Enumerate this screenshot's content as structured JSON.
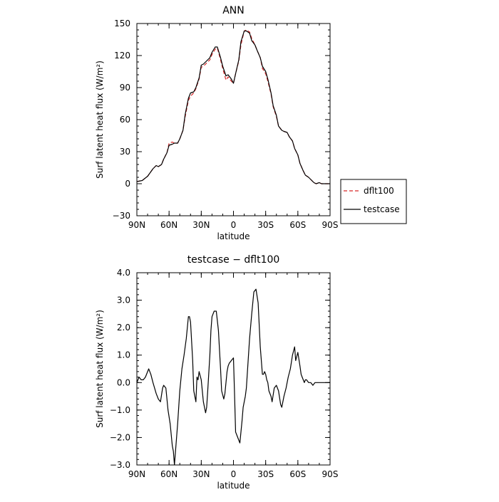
{
  "chart_data": [
    {
      "type": "line",
      "title": "ANN",
      "xlabel": "latitude",
      "ylabel": "Surf latent heat flux (W/m²)",
      "ylim": [
        -30,
        150
      ],
      "xlim": [
        90,
        -90
      ],
      "x_ticks": [
        {
          "value": 90,
          "label": "90N"
        },
        {
          "value": 60,
          "label": "60N"
        },
        {
          "value": 30,
          "label": "30N"
        },
        {
          "value": 0,
          "label": "0"
        },
        {
          "value": -30,
          "label": "30S"
        },
        {
          "value": -60,
          "label": "60S"
        },
        {
          "value": -90,
          "label": "90S"
        }
      ],
      "y_ticks": [
        {
          "value": 150,
          "label": "150"
        },
        {
          "value": 120,
          "label": "120"
        },
        {
          "value": 90,
          "label": "90"
        },
        {
          "value": 60,
          "label": "60"
        },
        {
          "value": 30,
          "label": "30"
        },
        {
          "value": 0,
          "label": "0"
        },
        {
          "value": -30,
          "label": "−30"
        }
      ],
      "legend": "right",
      "x": [
        90,
        85,
        80,
        75,
        72,
        70,
        67,
        65,
        62,
        60,
        57,
        55,
        52,
        50,
        47,
        45,
        42,
        40,
        37,
        35,
        32,
        30,
        28,
        25,
        22,
        20,
        17,
        15,
        12,
        10,
        7,
        5,
        2,
        0,
        -2,
        -5,
        -7,
        -10,
        -12,
        -15,
        -17,
        -20,
        -22,
        -25,
        -27,
        -30,
        -32,
        -35,
        -37,
        -40,
        -42,
        -45,
        -47,
        -50,
        -52,
        -55,
        -57,
        -60,
        -62,
        -65,
        -67,
        -70,
        -72,
        -75,
        -77,
        -80,
        -82,
        -85,
        -87,
        -90
      ],
      "series": [
        {
          "name": "dflt100",
          "color": "#d62728",
          "dash": "dashed",
          "values": [
            2,
            3,
            7,
            14,
            17,
            16,
            18,
            23,
            29,
            38,
            39,
            38,
            38,
            42,
            50,
            63,
            78,
            82,
            85,
            89,
            98,
            109,
            110,
            113,
            116,
            121,
            126,
            127,
            116,
            108,
            97,
            100,
            96,
            94,
            103,
            115,
            130,
            143,
            144,
            142,
            136,
            130,
            125,
            118,
            108,
            103,
            96,
            84,
            72,
            63,
            54,
            50,
            49,
            48,
            44,
            40,
            33,
            27,
            19,
            12,
            8,
            6,
            4,
            1,
            0,
            1,
            0,
            0,
            0,
            0
          ]
        },
        {
          "name": "testcase",
          "color": "#000000",
          "dash": "solid",
          "values": [
            2,
            3,
            7,
            14,
            17,
            16,
            18,
            23,
            29,
            36,
            37,
            38,
            38,
            42,
            50,
            65,
            80,
            85,
            86,
            90,
            99,
            111,
            112,
            115,
            118,
            123,
            128,
            128,
            118,
            110,
            101,
            102,
            98,
            94,
            103,
            116,
            133,
            143,
            143,
            141,
            134,
            130,
            125,
            118,
            110,
            105,
            98,
            85,
            73,
            64,
            54,
            50,
            49,
            48,
            44,
            40,
            33,
            27,
            19,
            12,
            8,
            6,
            4,
            1,
            0,
            1,
            0,
            0,
            0,
            0
          ]
        }
      ]
    },
    {
      "type": "line",
      "title": "testcase − dflt100",
      "xlabel": "latitude",
      "ylabel": "Surf latent heat flux (W/m²)",
      "ylim": [
        -3.0,
        4.0
      ],
      "xlim": [
        90,
        -90
      ],
      "x_ticks": [
        {
          "value": 90,
          "label": "90N"
        },
        {
          "value": 60,
          "label": "60N"
        },
        {
          "value": 30,
          "label": "30N"
        },
        {
          "value": 0,
          "label": "0"
        },
        {
          "value": -30,
          "label": "30S"
        },
        {
          "value": -60,
          "label": "60S"
        },
        {
          "value": -90,
          "label": "90S"
        }
      ],
      "y_ticks": [
        {
          "value": 4.0,
          "label": "4.0"
        },
        {
          "value": 3.0,
          "label": "3.0"
        },
        {
          "value": 2.0,
          "label": "2.0"
        },
        {
          "value": 1.0,
          "label": "1.0"
        },
        {
          "value": 0.0,
          "label": "0.0"
        },
        {
          "value": -1.0,
          "label": "−1.0"
        },
        {
          "value": -2.0,
          "label": "−2.0"
        },
        {
          "value": -3.0,
          "label": "−3.0"
        }
      ],
      "x": [
        90,
        88,
        86,
        84,
        82,
        79,
        77,
        75,
        72,
        70,
        68,
        66,
        65,
        63,
        61,
        59,
        57,
        56,
        55,
        52,
        50,
        48,
        46,
        44,
        43,
        42,
        41,
        40,
        38,
        37,
        35,
        34,
        33,
        32,
        30,
        28,
        26,
        25,
        24,
        22,
        21,
        20,
        18,
        16,
        14,
        12,
        11,
        9,
        8,
        6,
        5,
        4,
        2,
        0,
        -1,
        -2,
        -4,
        -6,
        -8,
        -9,
        -11,
        -12,
        -13,
        -14,
        -15,
        -17,
        -19,
        -21,
        -23,
        -25,
        -27,
        -28,
        -29,
        -30,
        -31,
        -32,
        -33,
        -35,
        -36,
        -38,
        -40,
        -42,
        -44,
        -45,
        -47,
        -49,
        -50,
        -51,
        -53,
        -55,
        -57,
        -58,
        -60,
        -62,
        -63,
        -64,
        -65,
        -66,
        -67,
        -68,
        -70,
        -72,
        -74,
        -76,
        -78,
        -80,
        -82,
        -84,
        -86,
        -88,
        -90
      ],
      "series": [
        {
          "name": "",
          "color": "#000000",
          "dash": "solid",
          "values": [
            0.0,
            0.2,
            0.1,
            0.1,
            0.2,
            0.5,
            0.3,
            0.0,
            -0.4,
            -0.6,
            -0.7,
            -0.2,
            -0.1,
            -0.2,
            -1.0,
            -1.5,
            -2.3,
            -2.5,
            -3.0,
            -1.5,
            -0.3,
            0.5,
            1.0,
            1.6,
            2.0,
            2.4,
            2.4,
            2.2,
            0.8,
            -0.3,
            -0.7,
            0.2,
            0.1,
            0.4,
            0.1,
            -0.7,
            -1.1,
            -0.9,
            -0.3,
            1.0,
            1.9,
            2.4,
            2.6,
            2.6,
            1.9,
            0.5,
            -0.3,
            -0.6,
            -0.4,
            0.4,
            0.6,
            0.7,
            0.8,
            0.9,
            -0.4,
            -1.8,
            -2.0,
            -2.2,
            -1.4,
            -0.9,
            -0.5,
            -0.2,
            0.4,
            1.0,
            1.6,
            2.5,
            3.3,
            3.4,
            2.9,
            1.3,
            0.3,
            0.3,
            0.4,
            0.3,
            0.1,
            0.0,
            -0.3,
            -0.5,
            -0.7,
            -0.2,
            -0.1,
            -0.3,
            -0.8,
            -0.9,
            -0.5,
            -0.2,
            0.0,
            0.2,
            0.5,
            1.0,
            1.3,
            0.8,
            1.1,
            0.6,
            0.3,
            0.2,
            0.1,
            0.0,
            0.1,
            0.1,
            0.0,
            0.0,
            -0.1,
            0.0,
            0.0,
            0.0,
            0.0,
            0.0,
            0.0,
            0.0,
            0.0
          ]
        }
      ]
    }
  ]
}
